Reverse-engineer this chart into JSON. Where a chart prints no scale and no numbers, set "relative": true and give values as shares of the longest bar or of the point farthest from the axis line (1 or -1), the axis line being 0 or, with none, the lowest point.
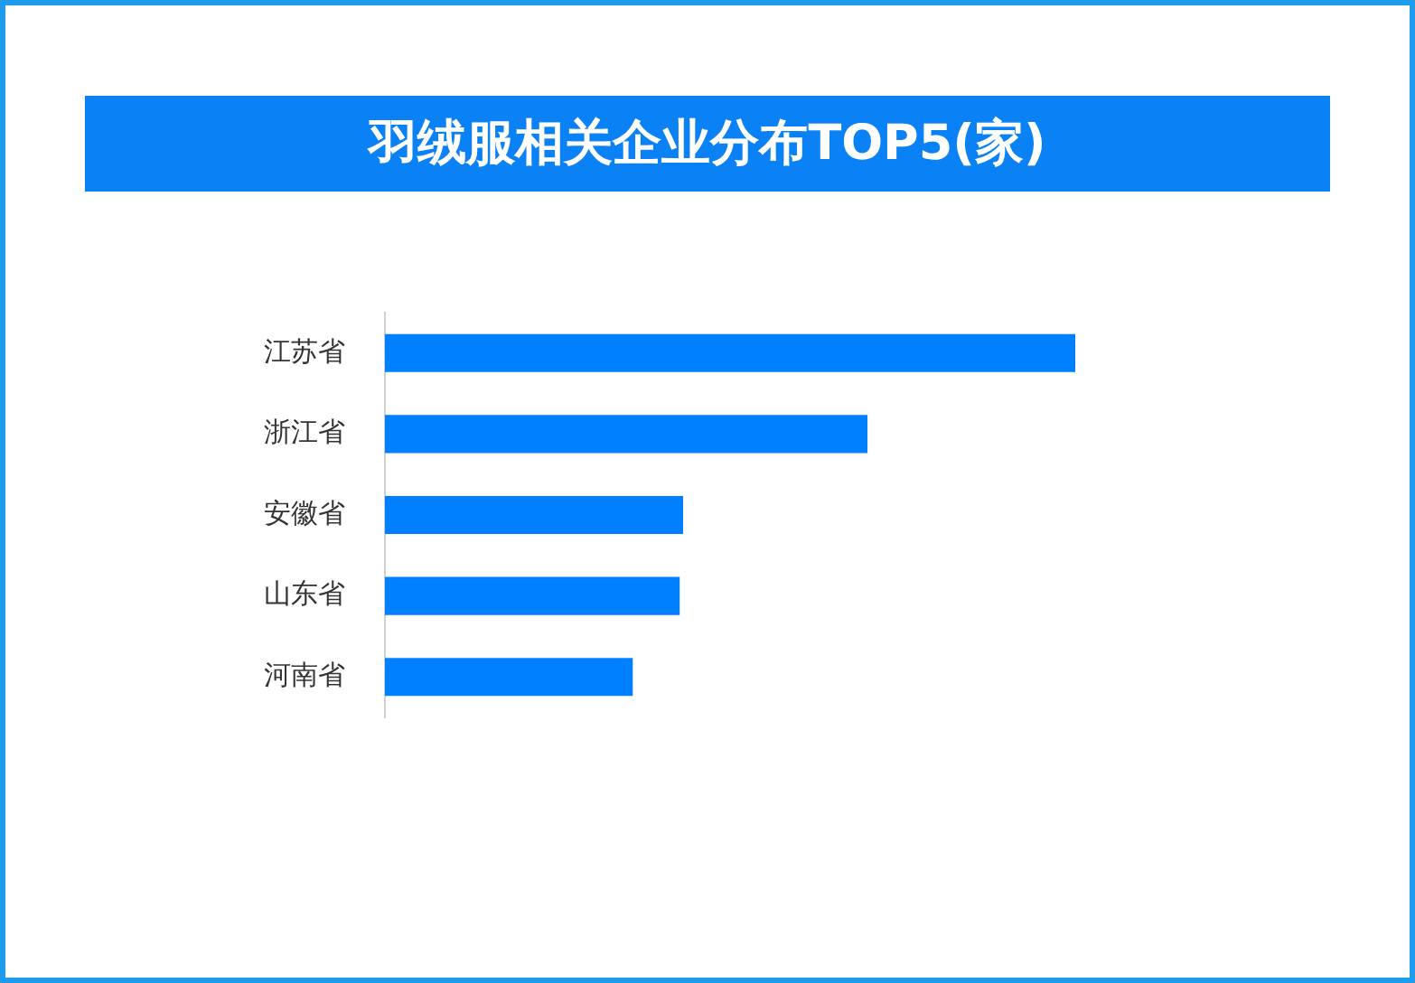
{
  "chart_data": {
    "type": "bar",
    "orientation": "horizontal",
    "relative": true,
    "title": "羽绒服相关企业分布TOP5(家)",
    "categories": [
      "江苏省",
      "浙江省",
      "安徽省",
      "山东省",
      "河南省"
    ],
    "values": [
      1,
      0.699,
      0.432,
      0.427,
      0.359
    ],
    "color": "#0080ff"
  }
}
